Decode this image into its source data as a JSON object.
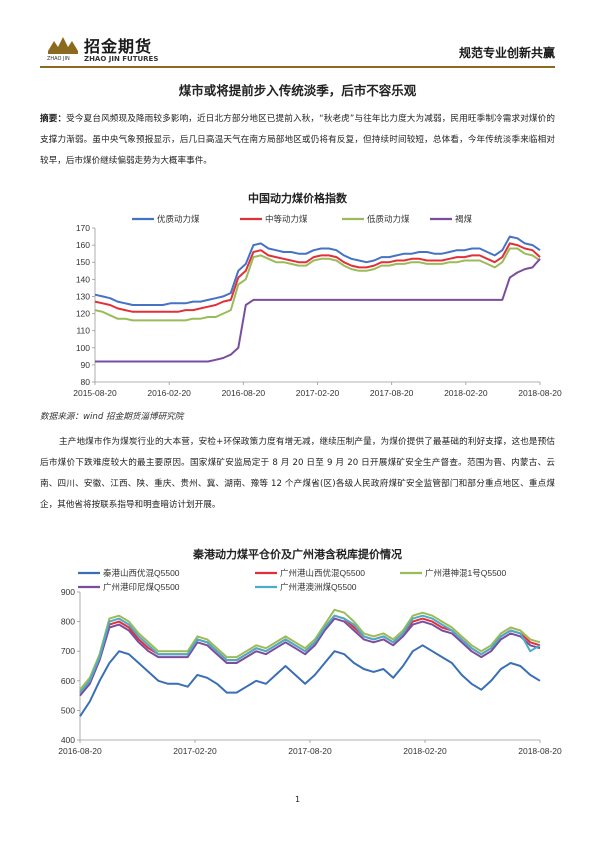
{
  "header": {
    "logo_cn": "招金期货",
    "logo_pinyin": "ZHAO JIN",
    "logo_en": "ZHAO JIN FUTURES",
    "slogan": "规范专业创新共赢",
    "accent": "#8B6A1F"
  },
  "title": "煤市或将提前步入传统淡季，后市不容乐观",
  "summary": {
    "label": "摘要：",
    "text": "受今夏台风频现及降雨较多影响，近日北方部分地区已提前入秋，“秋老虎”与往年比力度大为减弱，民用旺季制冷需求对煤价的支撑力渐弱。虽中央气象预报显示，后几日高温天气在南方局部地区或仍将有反复，但持续时间较短，总体看，今年传统淡季来临相对较早，后市煤价继续偏弱走势为大概率事件。"
  },
  "source_note": "数据来源：wind 招金期货淄博研究院",
  "body_paragraph": "主产地煤市作为煤炭行业的大本营，安检+环保政策力度有增无减，继续压制产量，为煤价提供了最基础的利好支撑，这也是预估后市煤价下跌难度较大的最主要原因。国家煤矿安监局定于 8 月 20 日至 9 月 20 日开展煤矿安全生产督查。范围为晋、内蒙古、云南、四川、安徽、江西、陕、重庆、贵州、冀、湖南、豫等 12 个产煤省(区)各级人民政府煤矿安全监管部门和部分重点地区、重点煤企，其他省将按联系指导和明查暗访计划开展。",
  "page_number": "1",
  "chart_data": [
    {
      "type": "line",
      "title": "中国动力煤价格指数",
      "x_ticks": [
        "2015-08-20",
        "2016-02-20",
        "2016-08-20",
        "2017-02-20",
        "2017-08-20",
        "2018-02-20",
        "2018-08-20"
      ],
      "ylim": [
        80,
        170
      ],
      "y_ticks": [
        80,
        90,
        100,
        110,
        120,
        130,
        140,
        150,
        160,
        170
      ],
      "grid": false,
      "legend": "top",
      "series": [
        {
          "name": "优质动力煤",
          "color": "#4472C4",
          "values": [
            131,
            130,
            129,
            127,
            126,
            125,
            125,
            125,
            125,
            125,
            126,
            126,
            126,
            127,
            127,
            128,
            129,
            130,
            132,
            145,
            149,
            160,
            161,
            158,
            157,
            156,
            156,
            155,
            155,
            157,
            158,
            158,
            157,
            154,
            152,
            151,
            150,
            151,
            153,
            153,
            154,
            155,
            155,
            156,
            156,
            155,
            155,
            156,
            157,
            157,
            158,
            158,
            156,
            154,
            157,
            165,
            164,
            161,
            160,
            157
          ]
        },
        {
          "name": "中等动力煤",
          "color": "#E0303A",
          "values": [
            127,
            126,
            125,
            123,
            122,
            121,
            121,
            121,
            121,
            121,
            121,
            121,
            122,
            122,
            123,
            124,
            125,
            127,
            128,
            141,
            145,
            156,
            157,
            154,
            153,
            152,
            151,
            150,
            150,
            153,
            154,
            154,
            153,
            150,
            148,
            147,
            147,
            148,
            150,
            150,
            151,
            151,
            152,
            152,
            151,
            151,
            151,
            152,
            153,
            153,
            154,
            154,
            152,
            150,
            153,
            161,
            160,
            158,
            157,
            153
          ]
        },
        {
          "name": "低质动力煤",
          "color": "#9BBB59",
          "values": [
            122,
            121,
            119,
            117,
            117,
            116,
            116,
            116,
            116,
            116,
            116,
            116,
            116,
            117,
            117,
            118,
            118,
            120,
            122,
            137,
            140,
            153,
            154,
            152,
            150,
            150,
            149,
            148,
            148,
            151,
            152,
            152,
            151,
            148,
            146,
            145,
            145,
            146,
            148,
            148,
            149,
            149,
            150,
            150,
            149,
            149,
            149,
            150,
            150,
            151,
            151,
            151,
            149,
            147,
            150,
            158,
            158,
            155,
            154,
            151
          ]
        },
        {
          "name": "褐煤",
          "color": "#7B4D9E",
          "values": [
            92,
            92,
            92,
            92,
            92,
            92,
            92,
            92,
            92,
            92,
            92,
            92,
            92,
            92,
            92,
            92,
            93,
            94,
            96,
            100,
            125,
            128,
            128,
            128,
            128,
            128,
            128,
            128,
            128,
            128,
            128,
            128,
            128,
            128,
            128,
            128,
            128,
            128,
            128,
            128,
            128,
            128,
            128,
            128,
            128,
            128,
            128,
            128,
            128,
            128,
            128,
            128,
            128,
            128,
            128,
            141,
            144,
            146,
            147,
            152
          ]
        }
      ]
    },
    {
      "type": "line",
      "title": "秦港动力煤平仓价及广州港含税库提价情况",
      "x_ticks": [
        "2016-08-20",
        "2017-02-20",
        "2017-08-20",
        "2018-02-20",
        "2018-08-20"
      ],
      "ylim": [
        400,
        900
      ],
      "y_ticks": [
        400,
        500,
        600,
        700,
        800,
        900
      ],
      "grid": false,
      "legend": "top",
      "series": [
        {
          "name": "秦港山西优混Q5500",
          "color": "#3A6FB6",
          "values": [
            480,
            530,
            600,
            660,
            700,
            690,
            660,
            630,
            600,
            590,
            590,
            580,
            620,
            610,
            590,
            560,
            560,
            580,
            600,
            590,
            620,
            650,
            620,
            590,
            620,
            660,
            700,
            690,
            660,
            640,
            630,
            640,
            610,
            650,
            700,
            720,
            700,
            680,
            660,
            620,
            590,
            570,
            600,
            640,
            660,
            650,
            620,
            600
          ]
        },
        {
          "name": "广州港山西优混Q5500",
          "color": "#E0303A",
          "values": [
            560,
            600,
            680,
            790,
            800,
            780,
            740,
            710,
            690,
            690,
            690,
            690,
            740,
            730,
            700,
            670,
            670,
            690,
            710,
            700,
            720,
            740,
            720,
            700,
            730,
            780,
            820,
            810,
            780,
            750,
            740,
            750,
            730,
            760,
            800,
            810,
            800,
            780,
            770,
            740,
            710,
            690,
            710,
            750,
            770,
            760,
            730,
            720
          ]
        },
        {
          "name": "广州港神混1号Q5500",
          "color": "#9BBB59",
          "values": [
            570,
            610,
            690,
            810,
            820,
            800,
            760,
            730,
            700,
            700,
            700,
            700,
            750,
            740,
            710,
            680,
            680,
            700,
            720,
            710,
            730,
            750,
            730,
            710,
            740,
            790,
            840,
            830,
            800,
            760,
            750,
            760,
            740,
            770,
            820,
            830,
            820,
            800,
            780,
            750,
            720,
            700,
            720,
            760,
            780,
            770,
            740,
            730
          ]
        },
        {
          "name": "广州港印尼煤Q5500",
          "color": "#7B4D9E",
          "values": [
            550,
            590,
            670,
            780,
            790,
            770,
            730,
            700,
            680,
            680,
            680,
            680,
            730,
            720,
            690,
            660,
            660,
            680,
            700,
            690,
            710,
            730,
            710,
            690,
            720,
            770,
            810,
            800,
            770,
            740,
            730,
            740,
            720,
            750,
            790,
            800,
            790,
            770,
            760,
            730,
            700,
            680,
            700,
            740,
            760,
            750,
            720,
            710
          ]
        },
        {
          "name": "广州港澳洲煤Q5500",
          "color": "#4BACC6",
          "values": [
            560,
            600,
            680,
            800,
            810,
            790,
            750,
            720,
            690,
            690,
            690,
            690,
            740,
            730,
            700,
            670,
            670,
            690,
            710,
            700,
            720,
            740,
            720,
            700,
            730,
            780,
            820,
            810,
            790,
            750,
            740,
            750,
            730,
            760,
            810,
            820,
            810,
            790,
            770,
            740,
            710,
            690,
            710,
            750,
            770,
            760,
            700,
            720
          ]
        }
      ]
    }
  ]
}
